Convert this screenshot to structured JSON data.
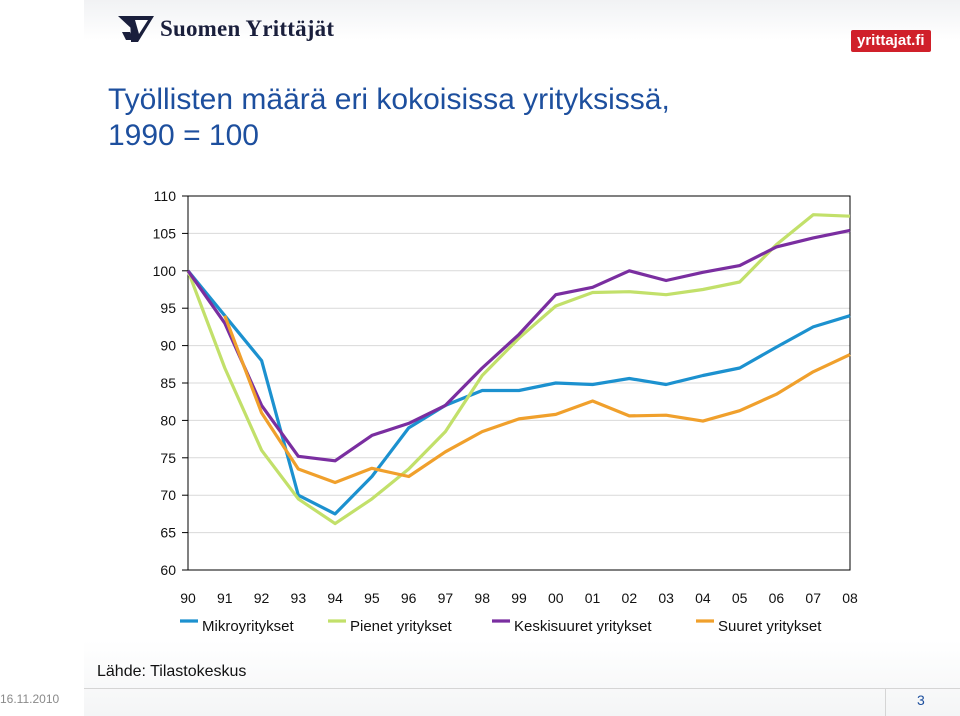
{
  "header": {
    "logo_text": "Suomen Yrittäjät",
    "badge_text": "yrittajat.fi"
  },
  "slide": {
    "title_line1": "Työllisten määrä eri kokoisissa yrityksissä,",
    "title_line2": "1990 = 100",
    "source": "Lähde: Tilastokeskus",
    "date": "16.11.2010",
    "page_number": "3"
  },
  "colors": {
    "title": "#1d4f9e",
    "mikro": "#1c91cf",
    "pienet": "#c2e06a",
    "keskisuuret": "#7a2ea0",
    "suuret": "#f0a02c",
    "badge": "#d0202a"
  },
  "chart_data": {
    "type": "line",
    "title": "Työllisten määrä eri kokoisissa yrityksissä, 1990 = 100",
    "xlabel": "",
    "ylabel": "",
    "ylim": [
      60,
      110
    ],
    "yticks": [
      "110",
      "105",
      "100",
      "95",
      "90",
      "85",
      "80",
      "75",
      "70",
      "65",
      "60"
    ],
    "categories": [
      "90",
      "91",
      "92",
      "93",
      "94",
      "95",
      "96",
      "97",
      "98",
      "99",
      "00",
      "01",
      "02",
      "03",
      "04",
      "05",
      "06",
      "07",
      "08"
    ],
    "grid": true,
    "legend_position": "bottom",
    "series": [
      {
        "name": "Mikroyritykset",
        "color": "#1c91cf",
        "values": [
          100,
          94,
          88,
          70,
          67.5,
          72.5,
          79,
          82,
          84,
          84,
          85,
          84.8,
          85.6,
          84.8,
          86,
          87,
          89.8,
          92.5,
          94
        ]
      },
      {
        "name": "Pienet yritykset",
        "color": "#c2e06a",
        "values": [
          100,
          87,
          76,
          69.5,
          66.2,
          69.5,
          73.5,
          78.5,
          86,
          91,
          95.3,
          97.1,
          97.2,
          96.8,
          97.5,
          98.5,
          103.5,
          107.5,
          107.3
        ]
      },
      {
        "name": "Keskisuuret yritykset",
        "color": "#7a2ea0",
        "values": [
          100,
          93,
          82,
          75.2,
          74.6,
          78,
          79.6,
          82,
          87,
          91.5,
          96.8,
          97.8,
          100,
          98.7,
          99.8,
          100.7,
          103.2,
          104.4,
          105.4
        ]
      },
      {
        "name": "Suuret yritykset",
        "color": "#f0a02c",
        "values": [
          null,
          94,
          81,
          73.5,
          71.7,
          73.6,
          72.5,
          75.8,
          78.5,
          80.2,
          80.8,
          82.6,
          80.6,
          80.7,
          79.9,
          81.3,
          83.5,
          86.5,
          88.8
        ]
      }
    ]
  }
}
